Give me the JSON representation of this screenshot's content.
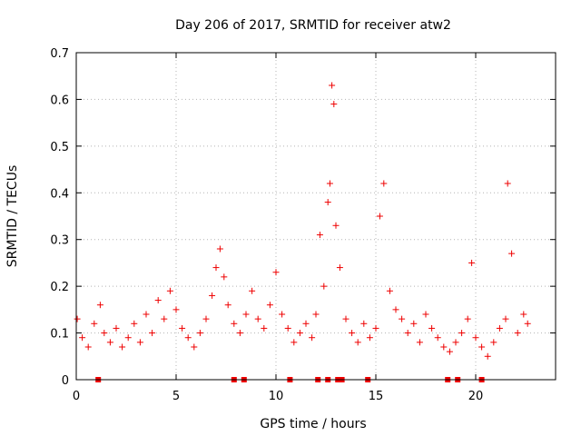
{
  "chart_data": {
    "type": "scatter",
    "title": "Day 206 of 2017, SRMTID for receiver atw2",
    "xlabel": "GPS time / hours",
    "ylabel": "SRMTID / TECUs",
    "xlim": [
      0,
      24
    ],
    "ylim": [
      0,
      0.7
    ],
    "xticks": [
      0,
      5,
      10,
      15,
      20
    ],
    "xtick_labels": [
      "0",
      "5",
      "10",
      "15",
      "20"
    ],
    "yticks": [
      0,
      0.1,
      0.2,
      0.3,
      0.4,
      0.5,
      0.6,
      0.7
    ],
    "ytick_labels": [
      "0",
      "0.1",
      "0.2",
      "0.3",
      "0.4",
      "0.5",
      "0.6",
      "0.7"
    ],
    "grid": true,
    "marker": "plus",
    "color": "#ee0000",
    "series": [
      {
        "name": "SRMTID",
        "x": [
          0.05,
          0.3,
          0.6,
          0.9,
          1.2,
          1.4,
          1.7,
          2.0,
          2.3,
          2.6,
          2.9,
          3.2,
          3.5,
          3.8,
          4.1,
          4.4,
          4.7,
          5.0,
          5.3,
          5.6,
          5.9,
          6.2,
          6.5,
          6.8,
          7.0,
          7.2,
          7.4,
          7.6,
          7.9,
          8.2,
          8.5,
          8.8,
          9.1,
          9.4,
          9.7,
          10.0,
          10.3,
          10.6,
          10.9,
          11.2,
          11.5,
          11.8,
          12.0,
          12.2,
          12.4,
          12.6,
          12.7,
          12.8,
          12.9,
          13.0,
          13.2,
          13.5,
          13.8,
          14.1,
          14.4,
          14.7,
          15.0,
          15.2,
          15.4,
          15.7,
          16.0,
          16.3,
          16.6,
          16.9,
          17.2,
          17.5,
          17.8,
          18.1,
          18.4,
          18.7,
          19.0,
          19.3,
          19.6,
          19.8,
          20.0,
          20.3,
          20.6,
          20.9,
          21.2,
          21.5,
          21.6,
          21.8,
          22.1,
          22.4,
          22.6
        ],
        "y": [
          0.13,
          0.09,
          0.07,
          0.12,
          0.16,
          0.1,
          0.08,
          0.11,
          0.07,
          0.09,
          0.12,
          0.08,
          0.14,
          0.1,
          0.17,
          0.13,
          0.19,
          0.15,
          0.11,
          0.09,
          0.07,
          0.1,
          0.13,
          0.18,
          0.24,
          0.28,
          0.22,
          0.16,
          0.12,
          0.1,
          0.14,
          0.19,
          0.13,
          0.11,
          0.16,
          0.23,
          0.14,
          0.11,
          0.08,
          0.1,
          0.12,
          0.09,
          0.14,
          0.31,
          0.2,
          0.38,
          0.42,
          0.63,
          0.59,
          0.33,
          0.24,
          0.13,
          0.1,
          0.08,
          0.12,
          0.09,
          0.11,
          0.35,
          0.42,
          0.19,
          0.15,
          0.13,
          0.1,
          0.12,
          0.08,
          0.14,
          0.11,
          0.09,
          0.07,
          0.06,
          0.08,
          0.1,
          0.13,
          0.25,
          0.09,
          0.07,
          0.05,
          0.08,
          0.11,
          0.13,
          0.42,
          0.27,
          0.1,
          0.14,
          0.12
        ]
      },
      {
        "name": "marker",
        "x": [
          1.1,
          7.9,
          8.4,
          10.7,
          12.1,
          12.6,
          13.1,
          13.3,
          14.6,
          18.6,
          19.1,
          20.3
        ],
        "y": [
          0,
          0,
          0,
          0,
          0,
          0,
          0,
          0,
          0,
          0,
          0,
          0
        ]
      }
    ]
  }
}
